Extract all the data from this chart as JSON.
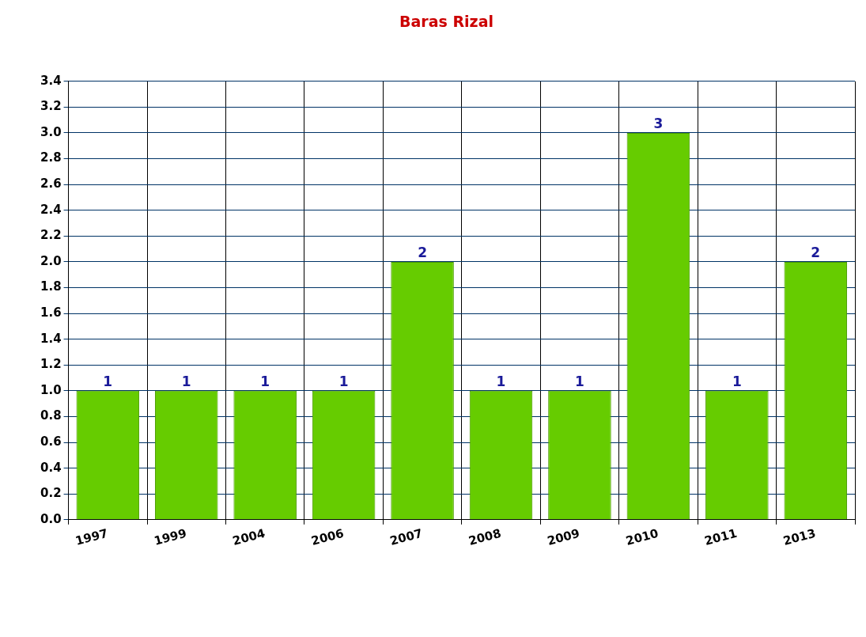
{
  "chart_data": {
    "type": "bar",
    "title": "Baras Rizal",
    "categories": [
      "1997",
      "1999",
      "2004",
      "2006",
      "2007",
      "2008",
      "2009",
      "2010",
      "2011",
      "2013"
    ],
    "values": [
      1,
      1,
      1,
      1,
      2,
      1,
      1,
      3,
      1,
      2
    ],
    "color": "#66cc00",
    "ylim": [
      0,
      3.4
    ],
    "yticks": [
      {
        "value": 0,
        "label": "0.0"
      },
      0.2,
      0.4,
      0.6,
      0.8,
      {
        "value": 1,
        "label": "1.0"
      },
      1.2,
      1.4,
      1.6,
      1.8,
      {
        "value": 2,
        "label": "2.0"
      },
      2.2,
      2.4,
      2.6,
      2.8,
      {
        "value": 3,
        "label": "3.0"
      },
      3.2,
      3.4
    ],
    "grid": true,
    "data_labels": true,
    "legend": false
  }
}
